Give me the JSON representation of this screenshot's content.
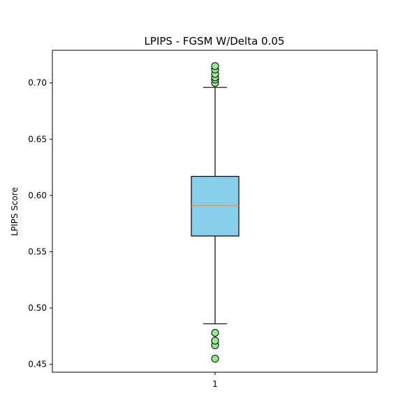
{
  "chart_data": {
    "type": "boxplot",
    "title": "LPIPS - FGSM W/Delta 0.05",
    "xlabel": "",
    "ylabel": "LPIPS Score",
    "ylim": [
      0.443,
      0.729
    ],
    "yticks": [
      0.45,
      0.5,
      0.55,
      0.6,
      0.65,
      0.7
    ],
    "ytick_labels": [
      "0.45",
      "0.50",
      "0.55",
      "0.60",
      "0.65",
      "0.70"
    ],
    "categories": [
      "1"
    ],
    "boxes": [
      {
        "name": "1",
        "whisker_low": 0.486,
        "q1": 0.564,
        "median": 0.591,
        "q3": 0.617,
        "whisker_high": 0.696,
        "outliers": [
          0.455,
          0.467,
          0.471,
          0.478,
          0.7,
          0.703,
          0.705,
          0.708,
          0.712,
          0.715
        ]
      }
    ],
    "colors": {
      "box_fill": "#87CEEB",
      "median_line": "#FF8C1A",
      "outlier_fill": "#90EE90",
      "edge": "#000000"
    }
  }
}
